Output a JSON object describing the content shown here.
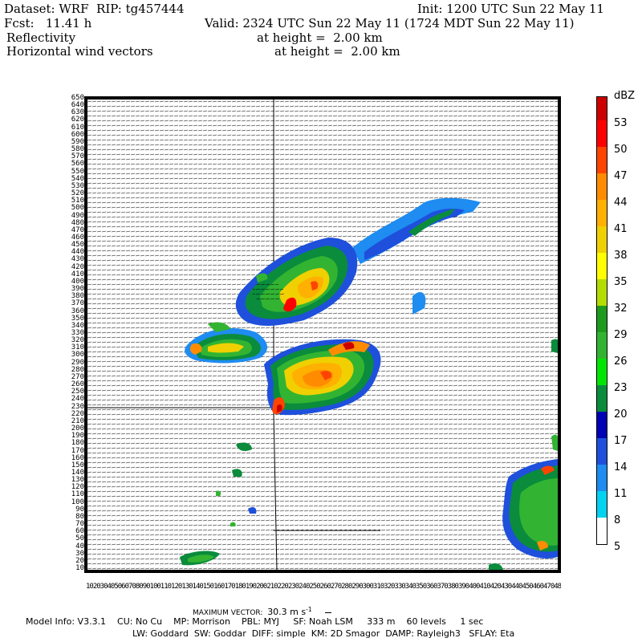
{
  "header": {
    "dataset_line": "Dataset: WRF  RIP: tg457444",
    "init_line": "Init: 1200 UTC Sun 22 May 11",
    "fcst_line": "Fcst:   11.41 h",
    "valid_line": "Valid: 2324 UTC Sun 22 May 11 (1724 MDT Sun 22 May 11)",
    "field1_name": "Reflectivity",
    "field1_level": "at height =  2.00 km",
    "field2_name": "Horizontal wind vectors",
    "field2_level": "at height =  2.00 km"
  },
  "axes": {
    "y_ticks": [
      "650",
      "640",
      "630",
      "620",
      "610",
      "600",
      "590",
      "580",
      "570",
      "560",
      "550",
      "540",
      "530",
      "520",
      "510",
      "500",
      "490",
      "480",
      "470",
      "460",
      "450",
      "440",
      "430",
      "420",
      "410",
      "400",
      "390",
      "380",
      "370",
      "360",
      "350",
      "340",
      "330",
      "320",
      "310",
      "300",
      "290",
      "280",
      "270",
      "260",
      "250",
      "240",
      "230",
      "220",
      "210",
      "200",
      "190",
      "180",
      "170",
      "160",
      "150",
      "140",
      "130",
      "120",
      "110",
      "100",
      "90",
      "80",
      "70",
      "60",
      "50",
      "40",
      "30",
      "20",
      "10"
    ],
    "x_ticks_text": "1020304050607080901001101201301401501601701801902002102202302402502602702802903003103203303403503603703803904004104204304404504604704804905005105205305405505605705805906006106206306406506"
  },
  "colorbar": {
    "unit": "dBZ",
    "labels": [
      "53",
      "50",
      "47",
      "44",
      "41",
      "38",
      "35",
      "32",
      "29",
      "26",
      "23",
      "20",
      "17",
      "14",
      "11",
      "8",
      "5"
    ],
    "colors": [
      "#cc0000",
      "#ff0000",
      "#ff4400",
      "#ff8c00",
      "#ffb000",
      "#f0d000",
      "#ffff00",
      "#b4dc00",
      "#1e9b1e",
      "#32b432",
      "#00e600",
      "#0a8c3c",
      "#0000b4",
      "#1e50dc",
      "#1e8cf0",
      "#00d2f0",
      "#ffffff"
    ]
  },
  "footer": {
    "max_vector_label": "MAXIMUM VECTOR:",
    "max_vector_value": "30.3 m s",
    "max_vector_exp": "-1",
    "model_info": "Model Info: V3.3.1    CU: No Cu    MP: Morrison    PBL: MYJ     SF: Noah LSM     333 m    60 levels     1 sec",
    "model_info2": "LW: Goddard  SW: Goddar  DIFF: simple  KM: 2D Smagor  DAMP: Rayleigh3   SFLAY: Eta"
  },
  "map": {
    "storms": [
      {
        "name": "northern-cell",
        "level": "44"
      },
      {
        "name": "southern-cell",
        "level": "47"
      },
      {
        "name": "western-band",
        "level": "41"
      },
      {
        "name": "northeast-band",
        "level": "14"
      },
      {
        "name": "southeast-cluster",
        "level": "26"
      }
    ]
  }
}
